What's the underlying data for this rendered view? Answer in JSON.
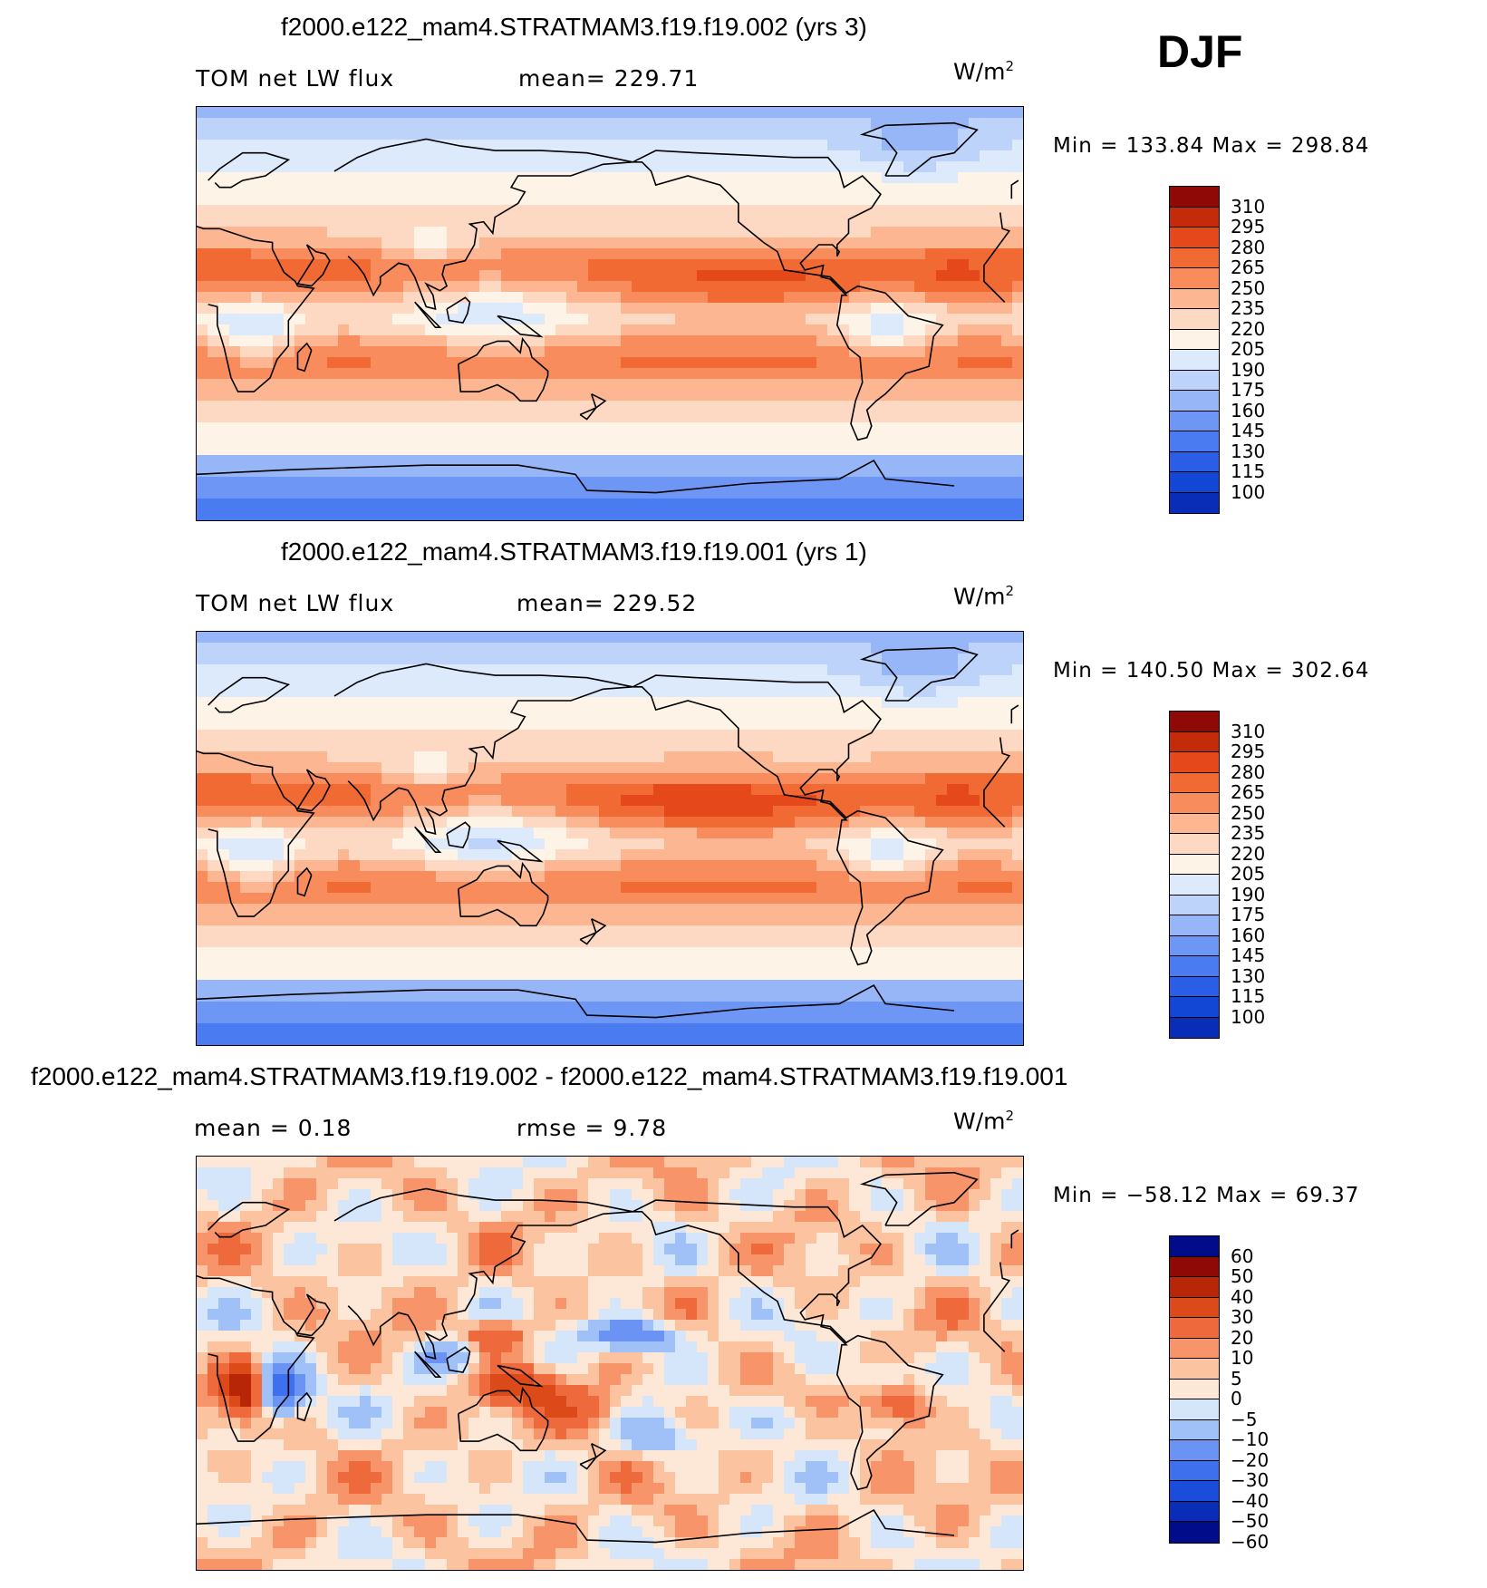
{
  "season": "DJF",
  "palettes": {
    "abs": [
      "#000c8a",
      "#0a2db8",
      "#1247d6",
      "#2b5ee6",
      "#4a7bf0",
      "#6e97f5",
      "#96b6f7",
      "#bdd3f9",
      "#ddeafc",
      "#fdf3e6",
      "#fdd9c3",
      "#fcb792",
      "#f98c5c",
      "#f26a33",
      "#e5481b",
      "#c42b0a",
      "#8f0a07"
    ],
    "diff": [
      "#000c8a",
      "#0a2db8",
      "#1a4ddc",
      "#3e6fec",
      "#6a93f3",
      "#a0c0f8",
      "#d5e6fb",
      "#fde7d6",
      "#fcc3a1",
      "#f7946a",
      "#ee6a3c",
      "#dc4a1a",
      "#b82608",
      "#8f0a07"
    ]
  },
  "chart_data": [
    {
      "type": "heatmap",
      "title": "f2000.e122_mam4.STRATMAM3.f19.f19.002 (yrs 3)",
      "variable": "TOM net LW flux",
      "stat": "mean=  229.71",
      "units": "W/m",
      "units_sup": "2",
      "minmax": "Min  =  133.84  Max  =  298.84",
      "min": 133.84,
      "max": 298.84,
      "mean": 229.71,
      "colorbar_labels": [
        "310",
        "295",
        "280",
        "265",
        "250",
        "235",
        "220",
        "205",
        "190",
        "175",
        "160",
        "145",
        "130",
        "115",
        "100"
      ],
      "lon_range": [
        0,
        360
      ],
      "lat_range": [
        -90,
        90
      ]
    },
    {
      "type": "heatmap",
      "title": "f2000.e122_mam4.STRATMAM3.f19.f19.001 (yrs 1)",
      "variable": "TOM net LW flux",
      "stat": "mean=  229.52",
      "units": "W/m",
      "units_sup": "2",
      "minmax": "Min  =  140.50  Max  =  302.64",
      "min": 140.5,
      "max": 302.64,
      "mean": 229.52,
      "colorbar_labels": [
        "310",
        "295",
        "280",
        "265",
        "250",
        "235",
        "220",
        "205",
        "190",
        "175",
        "160",
        "145",
        "130",
        "115",
        "100"
      ],
      "lon_range": [
        0,
        360
      ],
      "lat_range": [
        -90,
        90
      ]
    },
    {
      "type": "heatmap",
      "title": "f2000.e122_mam4.STRATMAM3.f19.f19.002 - f2000.e122_mam4.STRATMAM3.f19.f19.001",
      "stat_left": "mean  =     0.18",
      "stat": "rmse  =     9.78",
      "units": "W/m",
      "units_sup": "2",
      "minmax": "Min  =  −58.12  Max  =     69.37",
      "min": -58.12,
      "max": 69.37,
      "mean": 0.18,
      "rmse": 9.78,
      "colorbar_labels": [
        "60",
        "50",
        "40",
        "30",
        "20",
        "10",
        "5",
        "0",
        "−5",
        "−10",
        "−20",
        "−30",
        "−40",
        "−50",
        "−60"
      ],
      "lon_range": [
        0,
        360
      ],
      "lat_range": [
        -90,
        90
      ]
    }
  ]
}
